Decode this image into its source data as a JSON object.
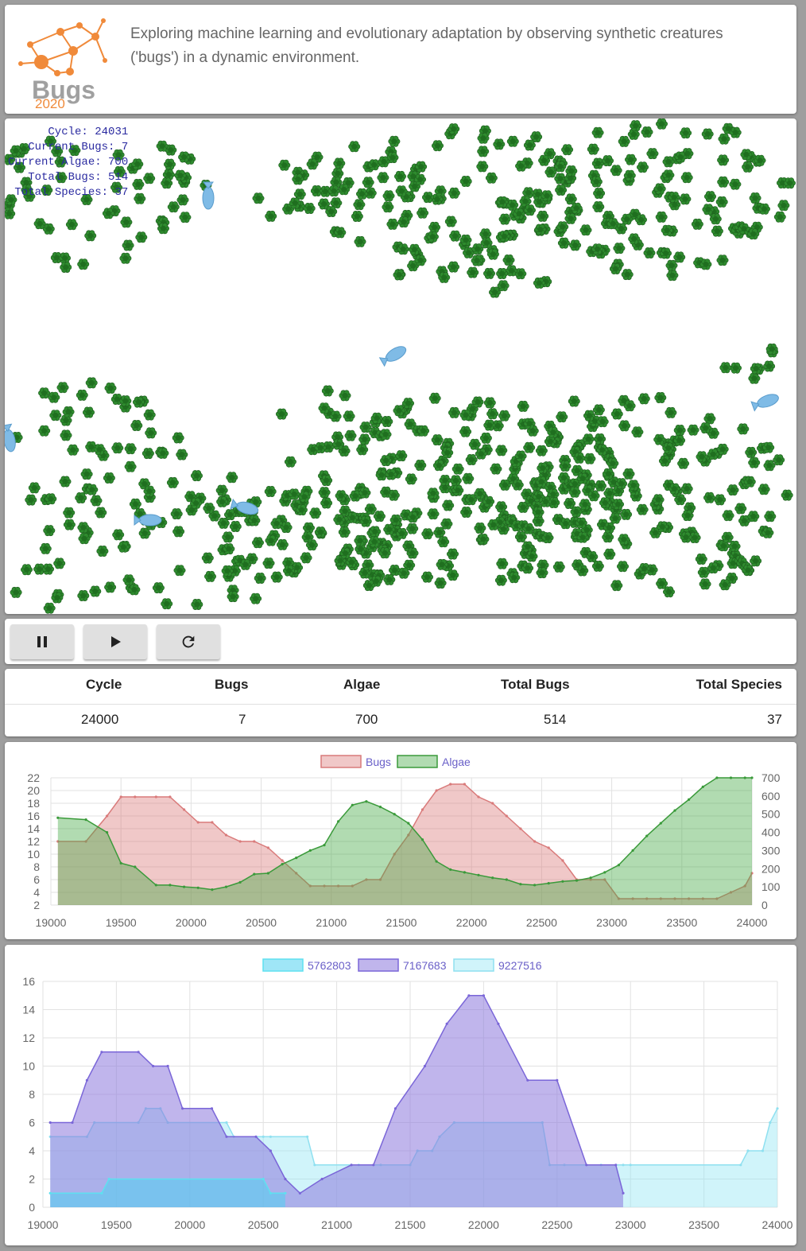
{
  "header": {
    "logo_text": "Bugs",
    "logo_year": "2020",
    "tagline": "Exploring machine learning and evolutionary adaptation by observing synthetic creatures ('bugs') in a dynamic environment."
  },
  "simulation": {
    "overlay": {
      "cycle_label": "Cycle:",
      "cycle_value": "24031",
      "bugs_label": "Current Bugs:",
      "bugs_value": "7",
      "algae_label": "Current Algae:",
      "algae_value": "700",
      "total_bugs_label": "Total Bugs:",
      "total_bugs_value": "514",
      "species_label": "Total Species:",
      "species_value": "37"
    },
    "colors": {
      "algae": "#2e8b2e",
      "bug": "#7fbbe6",
      "background": "#ffffff"
    }
  },
  "controls": [
    {
      "name": "pause-button",
      "icon": "pause-icon"
    },
    {
      "name": "play-button",
      "icon": "play-icon"
    },
    {
      "name": "reset-button",
      "icon": "refresh-icon"
    }
  ],
  "stats": {
    "headers": {
      "cycle": "Cycle",
      "bugs": "Bugs",
      "algae": "Algae",
      "total_bugs": "Total Bugs",
      "total_species": "Total Species"
    },
    "values": {
      "cycle": "24000",
      "bugs": "7",
      "algae": "700",
      "total_bugs": "514",
      "total_species": "37"
    }
  },
  "chart_data": [
    {
      "type": "area",
      "legend_position": "top",
      "grid": true,
      "x": [
        19050,
        19250,
        19400,
        19500,
        19600,
        19750,
        19850,
        19950,
        20050,
        20150,
        20250,
        20350,
        20450,
        20550,
        20650,
        20750,
        20850,
        20950,
        21050,
        21150,
        21250,
        21350,
        21450,
        21550,
        21650,
        21750,
        21850,
        21950,
        22050,
        22150,
        22250,
        22350,
        22450,
        22550,
        22650,
        22750,
        22850,
        22950,
        23050,
        23150,
        23250,
        23350,
        23450,
        23550,
        23650,
        23750,
        23850,
        23950,
        24000
      ],
      "xlim": [
        19000,
        24000
      ],
      "x_ticks": [
        19000,
        19500,
        20000,
        20500,
        21000,
        21500,
        22000,
        22500,
        23000,
        23500,
        24000
      ],
      "series": [
        {
          "name": "Bugs",
          "axis": "left",
          "color": "#d97a7a",
          "fill": "rgba(215,110,110,0.38)",
          "values": [
            12,
            12,
            16,
            19,
            19,
            19,
            19,
            17,
            15,
            15,
            13,
            12,
            12,
            11,
            9,
            7,
            5,
            5,
            5,
            5,
            6,
            6,
            10,
            13,
            17,
            20,
            21,
            21,
            19,
            18,
            16,
            14,
            12,
            11,
            9,
            6,
            6,
            6,
            3,
            3,
            3,
            3,
            3,
            3,
            3,
            3,
            4,
            5,
            7
          ]
        },
        {
          "name": "Algae",
          "axis": "right",
          "color": "#3a9a3a",
          "fill": "rgba(70,170,70,0.42)",
          "values": [
            480,
            470,
            400,
            230,
            210,
            110,
            110,
            100,
            95,
            85,
            100,
            125,
            170,
            175,
            225,
            260,
            300,
            330,
            460,
            550,
            570,
            540,
            500,
            450,
            360,
            240,
            195,
            180,
            165,
            150,
            140,
            115,
            110,
            120,
            130,
            135,
            150,
            180,
            220,
            300,
            380,
            450,
            520,
            580,
            650,
            700,
            700,
            700,
            700
          ]
        }
      ],
      "y_left": {
        "ticks": [
          2,
          4,
          6,
          8,
          10,
          12,
          14,
          16,
          18,
          20,
          22
        ],
        "lim": [
          2,
          22
        ]
      },
      "y_right": {
        "ticks": [
          0,
          100,
          200,
          300,
          400,
          500,
          600,
          700
        ],
        "lim": [
          0,
          700
        ]
      }
    },
    {
      "type": "area",
      "legend_position": "top",
      "grid": true,
      "xlim": [
        19000,
        24000
      ],
      "x_ticks": [
        19000,
        19500,
        20000,
        20500,
        21000,
        21500,
        22000,
        22500,
        23000,
        23500,
        24000
      ],
      "y_ticks": [
        0,
        2,
        4,
        6,
        8,
        10,
        12,
        14,
        16
      ],
      "ylim": [
        0,
        16
      ],
      "series": [
        {
          "name": "5762803",
          "color": "#5ee0f0",
          "fill": "rgba(80,210,240,0.55)",
          "x": [
            19050,
            19400,
            19450,
            20500,
            20550,
            20650
          ],
          "values": [
            1,
            1,
            2,
            2,
            1,
            1
          ]
        },
        {
          "name": "7167683",
          "color": "#7a66d8",
          "fill": "rgba(140,120,220,0.55)",
          "x": [
            19050,
            19200,
            19300,
            19400,
            19650,
            19750,
            19850,
            19950,
            20150,
            20250,
            20450,
            20550,
            20650,
            20750,
            20900,
            21100,
            21250,
            21400,
            21600,
            21750,
            21900,
            22000,
            22100,
            22300,
            22500,
            22700,
            22900,
            22950
          ],
          "values": [
            6,
            6,
            9,
            11,
            11,
            10,
            10,
            7,
            7,
            5,
            5,
            4,
            2,
            1,
            2,
            3,
            3,
            7,
            10,
            13,
            15,
            15,
            13,
            9,
            9,
            3,
            3,
            1
          ]
        },
        {
          "name": "9227516",
          "color": "#8fe0f0",
          "fill": "rgba(150,230,245,0.45)",
          "x": [
            19050,
            19300,
            19350,
            19650,
            19700,
            19800,
            19850,
            20250,
            20300,
            20500,
            20550,
            20800,
            20850,
            21100,
            21150,
            21300,
            21500,
            21550,
            21650,
            21700,
            21800,
            22400,
            22450,
            22550,
            22800,
            22950,
            23000,
            23750,
            23800,
            23900,
            23950,
            24000
          ],
          "values": [
            5,
            5,
            6,
            6,
            7,
            7,
            6,
            6,
            5,
            5,
            5,
            5,
            3,
            3,
            3,
            3,
            3,
            4,
            4,
            5,
            6,
            6,
            3,
            3,
            3,
            3,
            3,
            3,
            4,
            4,
            6,
            7
          ]
        }
      ]
    }
  ]
}
